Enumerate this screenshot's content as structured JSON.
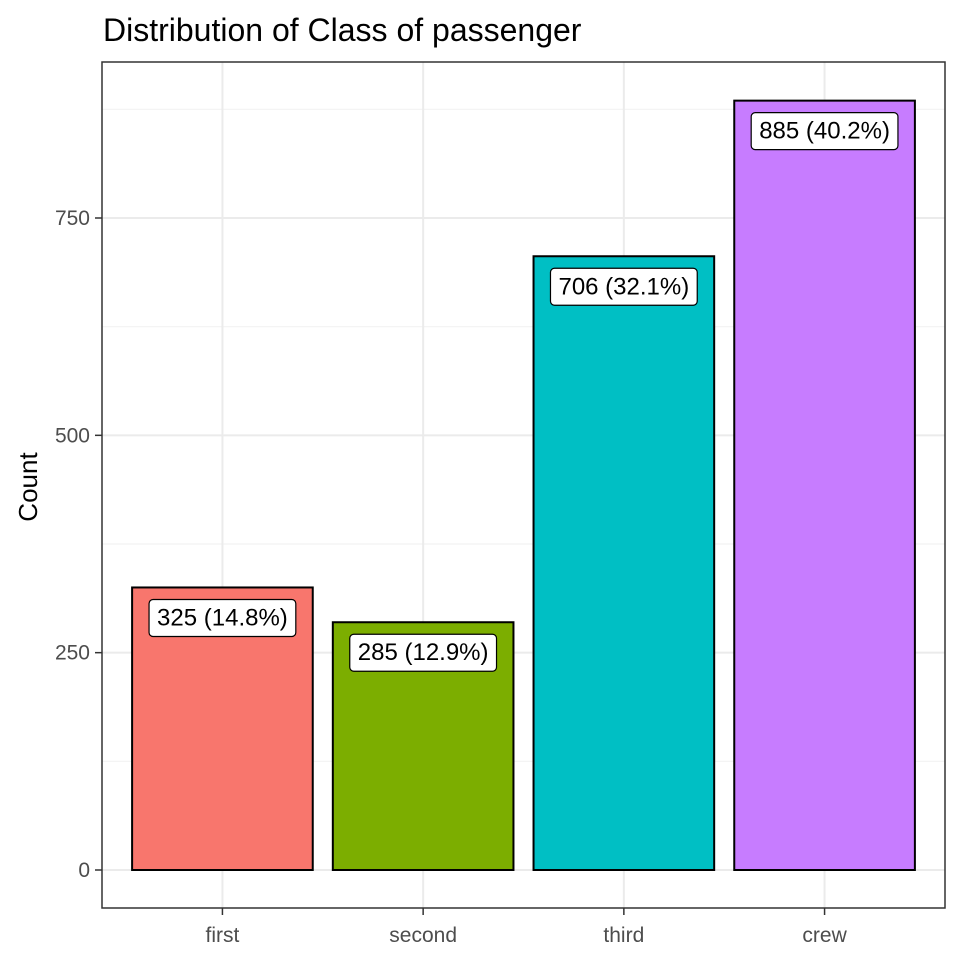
{
  "chart_data": {
    "type": "bar",
    "title": "Distribution of Class of passenger",
    "xlabel": "",
    "ylabel": "Count",
    "categories": [
      "first",
      "second",
      "third",
      "crew"
    ],
    "values": [
      325,
      285,
      706,
      885
    ],
    "data_labels": [
      "325 (14.8%)",
      "285 (12.9%)",
      "706 (32.1%)",
      "885 (40.2%)"
    ],
    "colors": [
      "#F8766D",
      "#7CAE00",
      "#00BFC4",
      "#C77CFF"
    ],
    "yticks": [
      0,
      250,
      500,
      750
    ],
    "ytick_labels": [
      "0",
      "250",
      "500",
      "750"
    ],
    "ylim": [
      -44,
      929
    ],
    "grid": true,
    "legend": "none"
  }
}
